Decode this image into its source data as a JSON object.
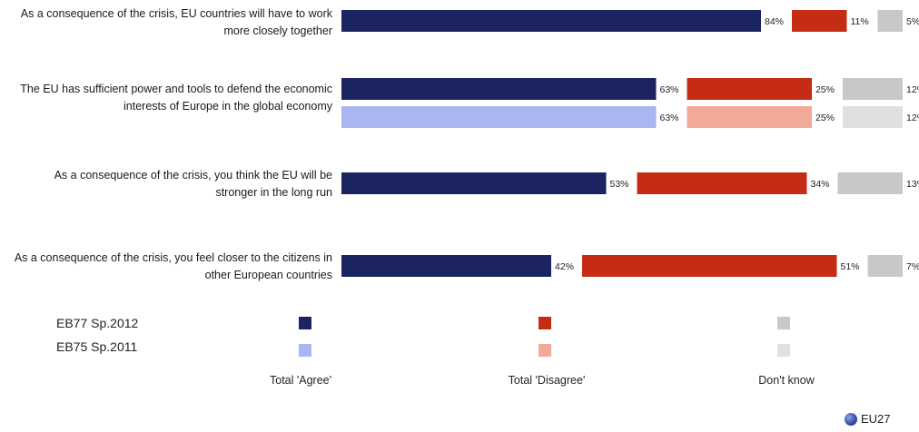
{
  "chart_data": {
    "type": "bar",
    "orientation": "horizontal",
    "stacked": true,
    "value_format": "%",
    "categories": [
      [
        "As a consequence of the crisis, EU countries will have to work",
        "more closely together"
      ],
      [
        "The EU has sufficient power and tools to defend the economic",
        "interests of Europe in the global economy"
      ],
      [
        "As a consequence of the crisis, you think the EU will be",
        "stronger in the long run"
      ],
      [
        "As a consequence of the crisis, you feel closer to the citizens in",
        "other European countries"
      ]
    ],
    "responses": [
      "Total 'Agree'",
      "Total 'Disagree'",
      "Don't know"
    ],
    "series": [
      {
        "name": "EB77 Sp.2012",
        "colors": [
          "#1b2461",
          "#c42c14",
          "#c8c8c8"
        ],
        "values": [
          [
            84,
            11,
            5
          ],
          [
            63,
            25,
            12
          ],
          [
            53,
            34,
            13
          ],
          [
            42,
            51,
            7
          ]
        ]
      },
      {
        "name": "EB75 Sp.2011",
        "colors": [
          "#a9b6f2",
          "#f2a998",
          "#e0e0e0"
        ],
        "values": [
          null,
          [
            63,
            25,
            12
          ],
          null,
          null
        ]
      }
    ],
    "footer_badge": "EU27"
  }
}
